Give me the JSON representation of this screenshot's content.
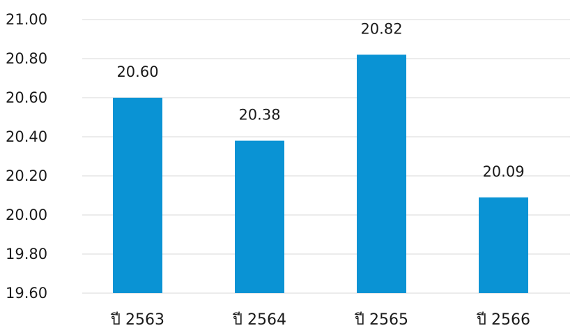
{
  "chart_data": {
    "type": "bar",
    "categories": [
      "ปี 2563",
      "ปี 2564",
      "ปี 2565",
      "ปี 2566"
    ],
    "values": [
      20.6,
      20.38,
      20.82,
      20.09
    ],
    "data_labels": [
      "20.60",
      "20.38",
      "20.82",
      "20.09"
    ],
    "title": "",
    "xlabel": "",
    "ylabel": "",
    "ylim": [
      19.6,
      21.0
    ],
    "yticks": [
      "19.60",
      "19.80",
      "20.00",
      "20.20",
      "20.40",
      "20.60",
      "20.80",
      "21.00"
    ],
    "grid": true,
    "legend": "none",
    "colors": {
      "bar": "#0a93d4",
      "grid": "#d9d9d9",
      "text": "#1a1a1a"
    }
  }
}
